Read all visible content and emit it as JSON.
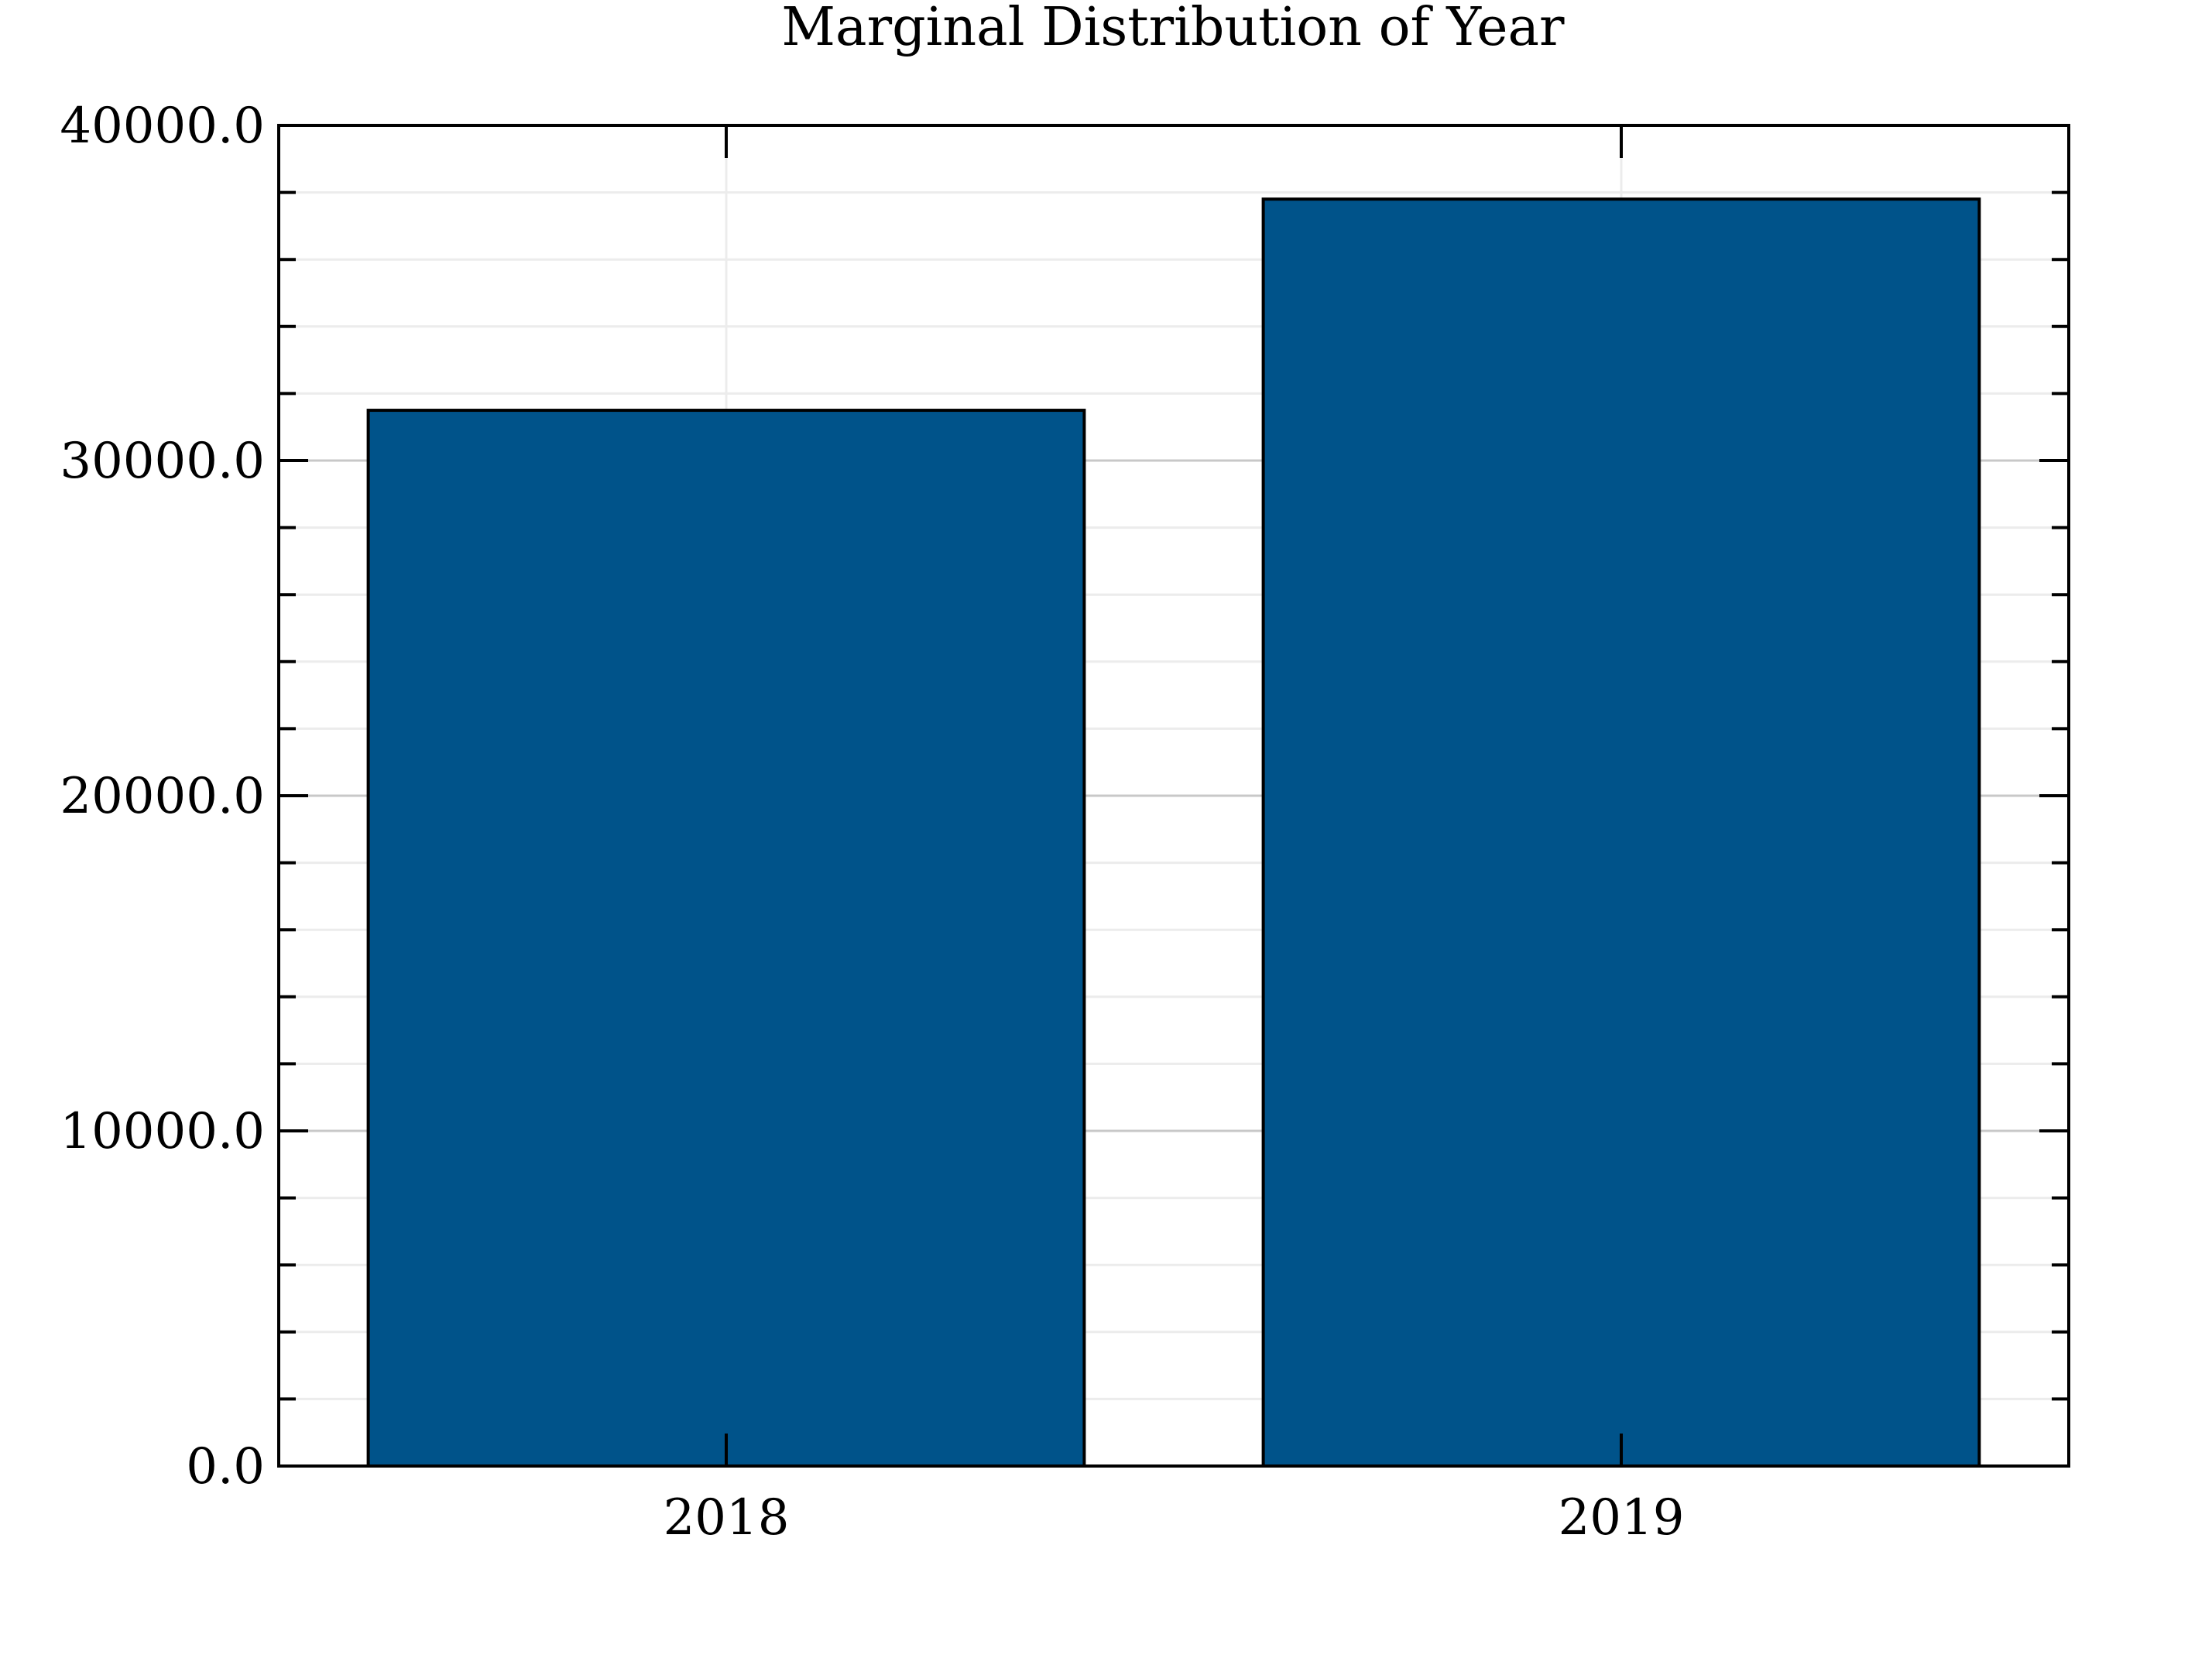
{
  "chart_data": {
    "type": "bar",
    "title": "Marginal Distribution of Year",
    "xlabel": "",
    "ylabel": "",
    "categories": [
      "2018",
      "2019"
    ],
    "values": [
      31500,
      37800
    ],
    "ylim": [
      0,
      40000
    ],
    "yticks": [
      0,
      10000,
      20000,
      30000,
      40000
    ],
    "ytick_labels": [
      "0.0",
      "10000.0",
      "20000.0",
      "30000.0",
      "40000.0"
    ],
    "minor_tick_step": 2000,
    "grid": true,
    "legend": "none",
    "colors": {
      "bar_fill": "#00538a",
      "bar_edge": "#000000",
      "major_grid": "#c8c8c8",
      "minor_grid": "#ececec",
      "axes": "#000000"
    }
  }
}
